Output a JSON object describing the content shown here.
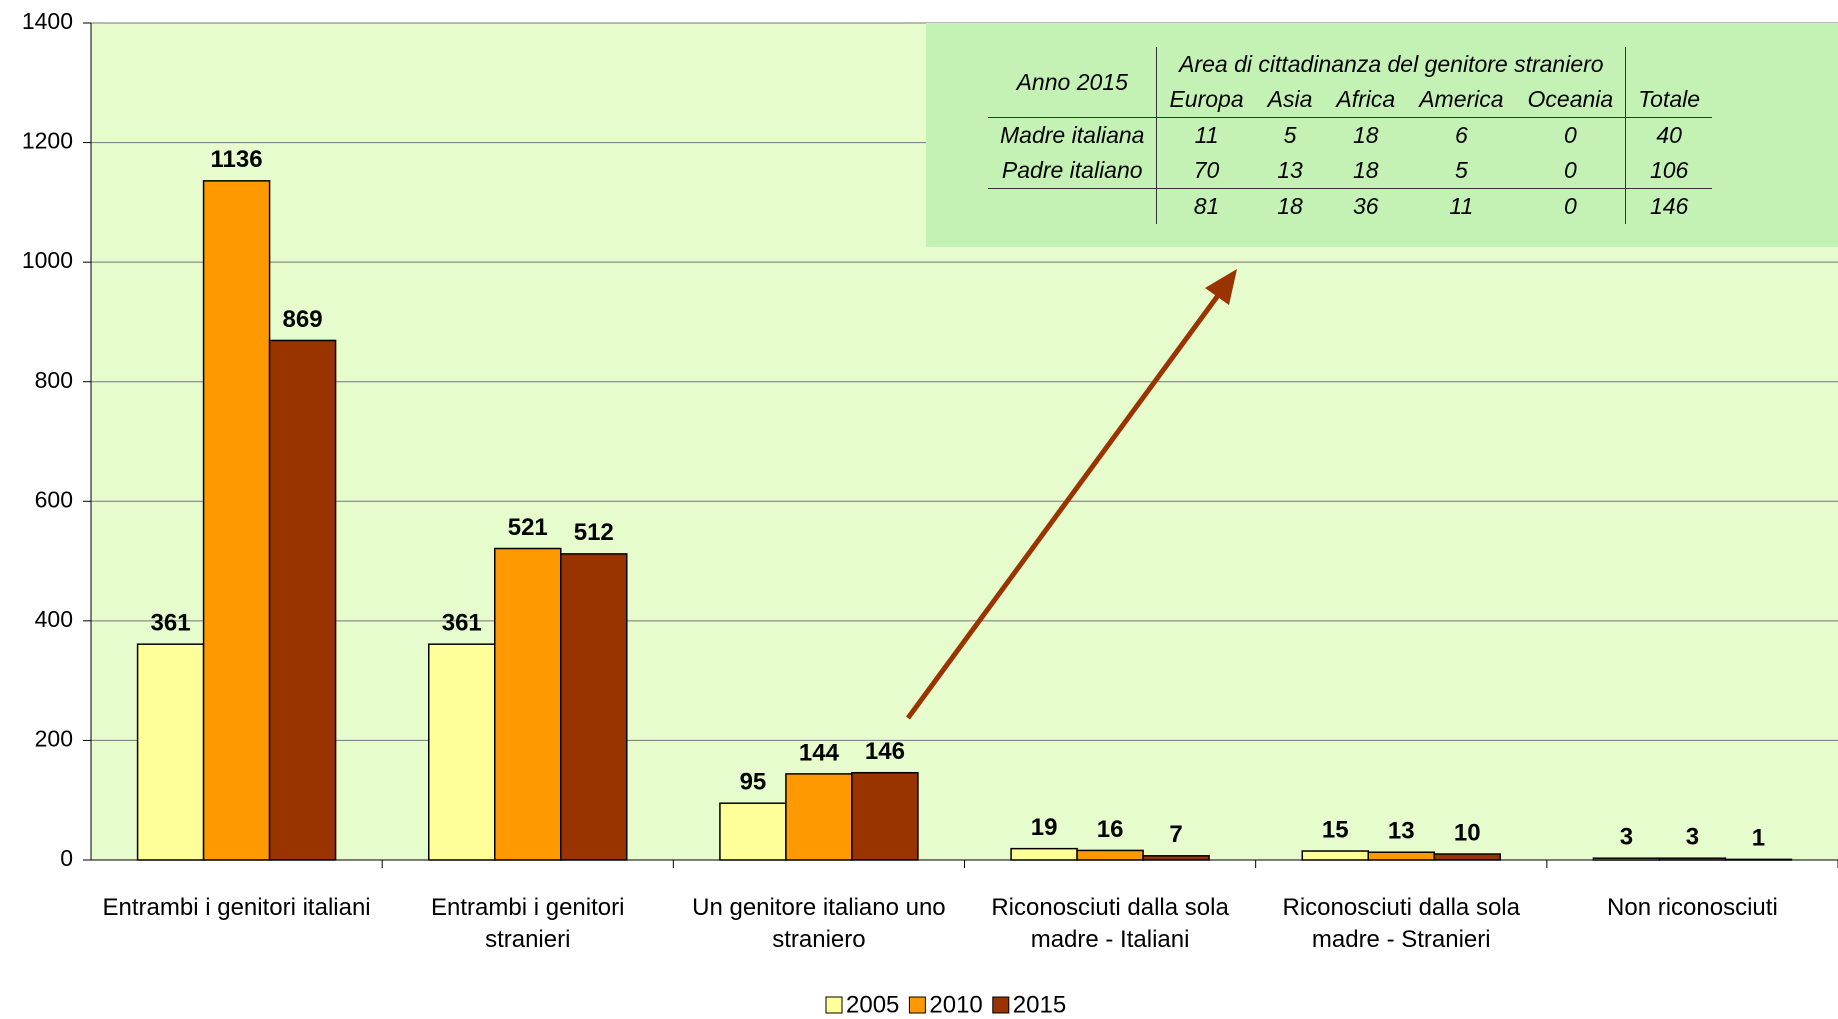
{
  "chart_data": {
    "type": "bar",
    "categories": [
      "Entrambi i genitori italiani",
      "Entrambi i genitori stranieri",
      "Un genitore italiano uno straniero",
      "Riconosciuti dalla sola madre - Italiani",
      "Riconosciuti dalla sola madre - Stranieri",
      "Non riconosciuti"
    ],
    "series": [
      {
        "name": "2005",
        "color": "#ffff99",
        "values": [
          361,
          361,
          95,
          19,
          15,
          3
        ]
      },
      {
        "name": "2010",
        "color": "#ff9900",
        "values": [
          1136,
          521,
          144,
          16,
          13,
          3
        ]
      },
      {
        "name": "2015",
        "color": "#993300",
        "values": [
          869,
          512,
          146,
          7,
          10,
          1
        ]
      }
    ],
    "ylim": [
      0,
      1400
    ],
    "yticks": [
      0,
      200,
      400,
      600,
      800,
      1000,
      1200,
      1400
    ],
    "grid": true,
    "legend": "bottom",
    "inset_table": {
      "row_header": "Anno 2015",
      "group_header": "Area di cittadinanza del genitore straniero",
      "columns": [
        "Europa",
        "Asia",
        "Africa",
        "America",
        "Oceania",
        "Totale"
      ],
      "rows": [
        {
          "label": "Madre italiana",
          "values": [
            11,
            5,
            18,
            6,
            0,
            40
          ]
        },
        {
          "label": "Padre italiano",
          "values": [
            70,
            13,
            18,
            5,
            0,
            106
          ]
        },
        {
          "label": null,
          "values": [
            81,
            18,
            36,
            11,
            0,
            146
          ]
        }
      ]
    }
  }
}
